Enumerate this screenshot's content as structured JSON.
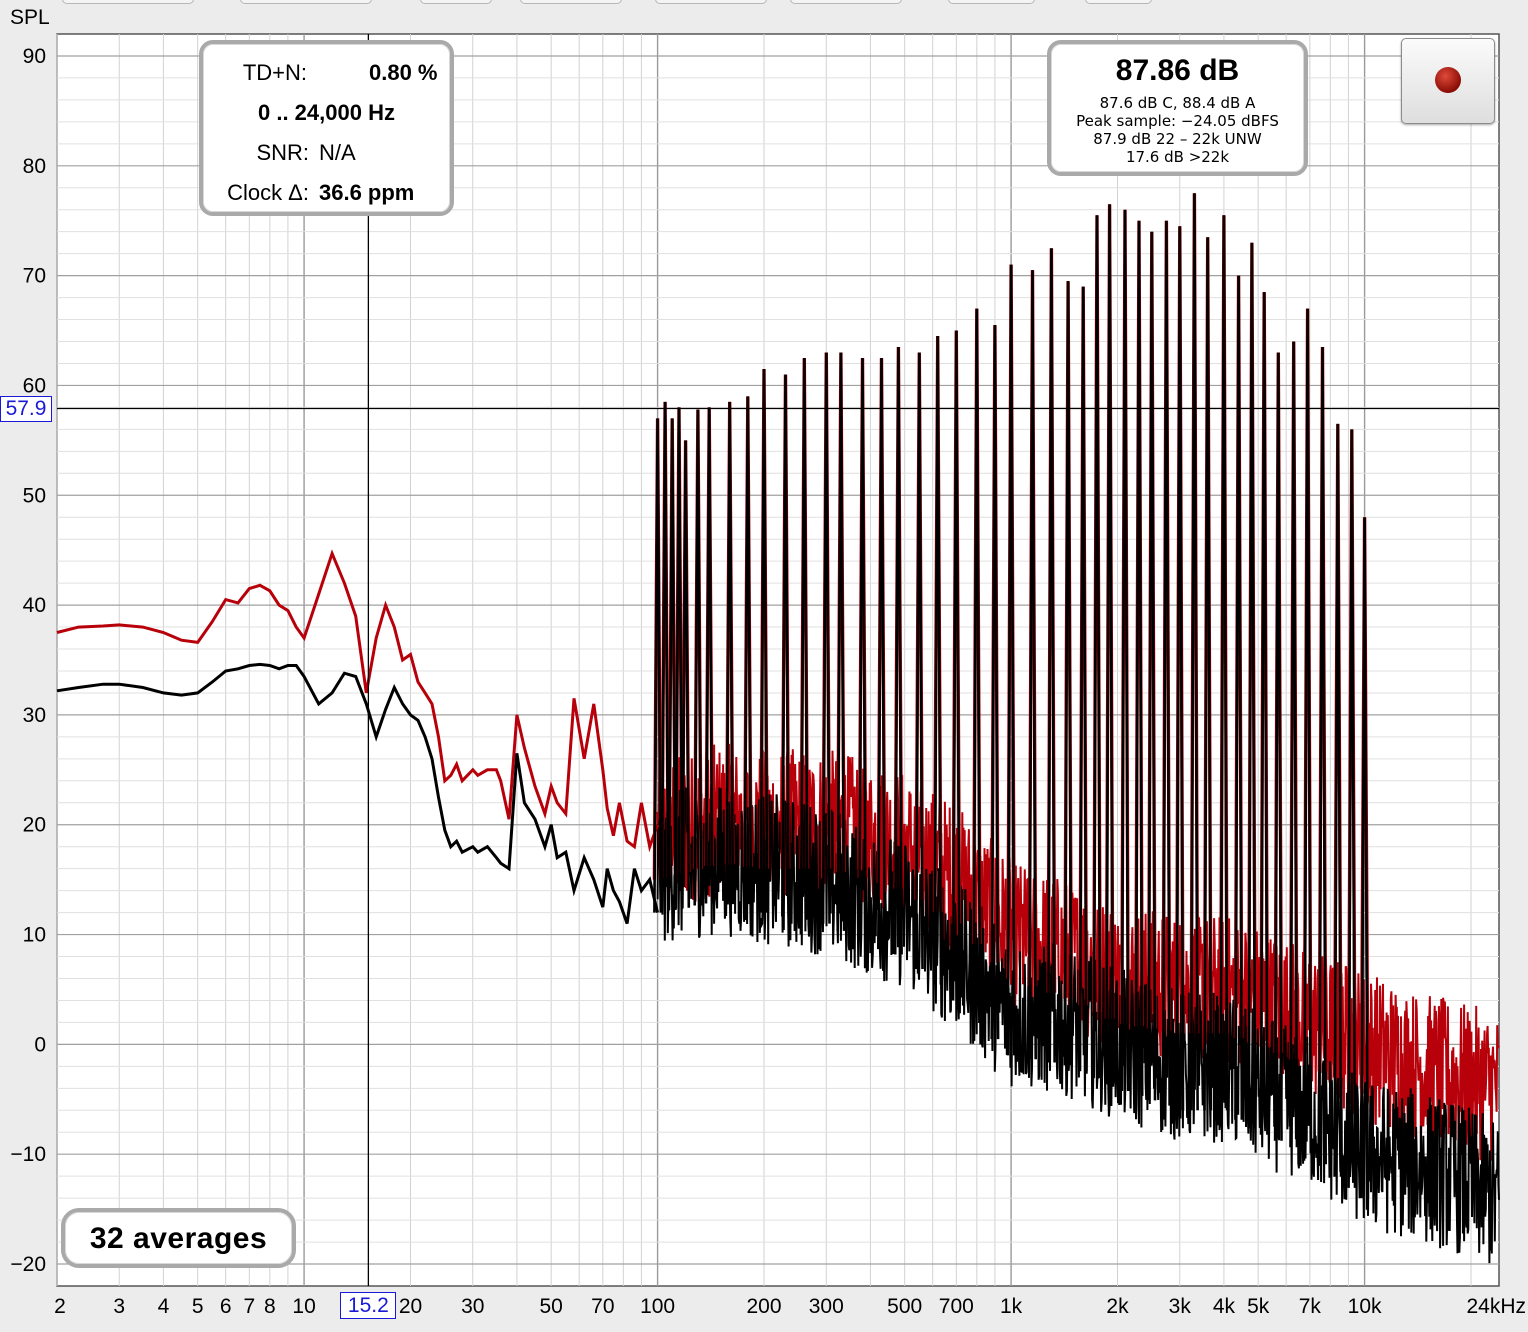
{
  "y_axis_title": "SPL",
  "chart_data": {
    "type": "line",
    "x_scale": "log",
    "xlim_hz": [
      2,
      24000
    ],
    "ylim": [
      -22,
      92
    ],
    "grid": true,
    "x_ticks": [
      {
        "v": 2,
        "label": "2"
      },
      {
        "v": 3,
        "label": "3"
      },
      {
        "v": 4,
        "label": "4"
      },
      {
        "v": 5,
        "label": "5"
      },
      {
        "v": 6,
        "label": "6"
      },
      {
        "v": 7,
        "label": "7"
      },
      {
        "v": 8,
        "label": "8"
      },
      {
        "v": 10,
        "label": "10"
      },
      {
        "v": 20,
        "label": "20"
      },
      {
        "v": 30,
        "label": "30"
      },
      {
        "v": 50,
        "label": "50"
      },
      {
        "v": 70,
        "label": "70"
      },
      {
        "v": 100,
        "label": "100"
      },
      {
        "v": 200,
        "label": "200"
      },
      {
        "v": 300,
        "label": "300"
      },
      {
        "v": 500,
        "label": "500"
      },
      {
        "v": 700,
        "label": "700"
      },
      {
        "v": 1000,
        "label": "1k"
      },
      {
        "v": 2000,
        "label": "2k"
      },
      {
        "v": 3000,
        "label": "3k"
      },
      {
        "v": 4000,
        "label": "4k"
      },
      {
        "v": 5000,
        "label": "5k"
      },
      {
        "v": 7000,
        "label": "7k"
      },
      {
        "v": 10000,
        "label": "10k"
      },
      {
        "v": 24000,
        "label": "24kHz"
      }
    ],
    "y_ticks": [
      90,
      80,
      70,
      60,
      50,
      40,
      30,
      20,
      10,
      0,
      -10,
      -20
    ],
    "cursor": {
      "x_hz": 15.2,
      "y_db": 57.9,
      "x_label": "15.2",
      "y_label": "57.9"
    },
    "series": [
      {
        "color": "#b8000a",
        "x": [
          2,
          2.3,
          2.7,
          3,
          3.5,
          4,
          4.5,
          5,
          5.5,
          6,
          6.5,
          7,
          7.5,
          8,
          8.5,
          9,
          9.5,
          10,
          11,
          12,
          13,
          14,
          15,
          16,
          17,
          18,
          19,
          20,
          21,
          22,
          23,
          24,
          25,
          26,
          27,
          28,
          30,
          31,
          33,
          35,
          36,
          38,
          40,
          42,
          45,
          48,
          50,
          52,
          55,
          58,
          62,
          66,
          70,
          72,
          75,
          78,
          82,
          86,
          90,
          95,
          100
        ],
        "y": [
          37.5,
          38,
          38.1,
          38.2,
          38,
          37.5,
          36.8,
          36.6,
          38.5,
          40.5,
          40.2,
          41.5,
          41.8,
          41.3,
          40,
          39.5,
          38,
          37,
          41,
          44.7,
          42,
          39,
          32,
          37,
          40,
          38,
          35,
          35.5,
          33,
          32,
          31,
          28,
          24,
          24.5,
          25.5,
          24,
          25,
          24.5,
          25,
          25,
          24,
          20.5,
          30,
          27,
          23.5,
          21,
          23.5,
          22,
          21,
          31.5,
          26,
          31,
          25,
          21.5,
          19,
          22,
          18.5,
          18,
          22,
          18,
          20
        ]
      },
      {
        "color": "#000000",
        "x": [
          2,
          2.3,
          2.7,
          3,
          3.5,
          4,
          4.5,
          5,
          5.5,
          6,
          6.5,
          7,
          7.5,
          8,
          8.5,
          9,
          9.5,
          10,
          11,
          12,
          13,
          14,
          15,
          16,
          17,
          18,
          19,
          20,
          21,
          22,
          23,
          24,
          25,
          26,
          27,
          28,
          30,
          31,
          33,
          35,
          36,
          38,
          40,
          42,
          45,
          48,
          50,
          52,
          55,
          58,
          62,
          66,
          70,
          72,
          75,
          78,
          82,
          86,
          90,
          95,
          100
        ],
        "y": [
          32.2,
          32.5,
          32.8,
          32.8,
          32.5,
          32,
          31.8,
          32,
          33,
          34,
          34.2,
          34.5,
          34.6,
          34.5,
          34.2,
          34.5,
          34.5,
          33.5,
          31,
          32,
          33.8,
          33.5,
          31,
          28,
          30.5,
          32.5,
          31,
          30,
          29.5,
          28,
          26,
          22.5,
          19.5,
          18,
          18.5,
          17.5,
          18,
          17.5,
          18,
          17,
          16.5,
          16,
          26.5,
          22,
          20.5,
          18,
          20,
          17,
          17.5,
          14,
          17,
          15,
          12.5,
          16,
          14,
          13,
          11,
          16,
          14,
          15,
          12
        ]
      }
    ],
    "harmonics": {
      "f": [
        100,
        105,
        110,
        115,
        120,
        130,
        140,
        160,
        180,
        200,
        230,
        260,
        300,
        330,
        380,
        430,
        480,
        550,
        620,
        700,
        800,
        900,
        1000,
        1150,
        1300,
        1450,
        1600,
        1750,
        1900,
        2100,
        2300,
        2500,
        2750,
        3000,
        3300,
        3600,
        4000,
        4400,
        4800,
        5200,
        5700,
        6300,
        6900,
        7600,
        8400,
        9200,
        10000
      ],
      "peak": [
        57,
        58.5,
        57,
        58,
        55,
        57.8,
        58,
        58.5,
        59,
        61.5,
        61,
        62.5,
        63,
        63,
        62.5,
        62.5,
        63.5,
        63,
        64.5,
        65,
        67,
        65.5,
        71,
        70.5,
        72.5,
        69.5,
        69,
        75.5,
        76.5,
        76,
        75,
        74,
        75,
        74.5,
        77.5,
        73.5,
        75.5,
        70,
        73,
        68.5,
        63,
        64,
        67,
        63.5,
        56.5,
        56,
        48
      ]
    },
    "noise_floor": {
      "f": [
        100,
        150,
        200,
        300,
        400,
        500,
        700,
        1000,
        1500,
        2000,
        3000,
        4000,
        5000,
        7000,
        10000,
        14000,
        18000,
        24000
      ],
      "red": [
        19,
        20.5,
        20,
        20,
        19,
        18,
        15,
        10,
        8,
        6,
        5,
        5,
        4,
        2,
        0,
        -2,
        -3,
        -4
      ],
      "black": [
        16,
        17,
        16,
        15,
        13,
        12,
        8,
        3,
        2,
        0,
        -2,
        -2,
        -4,
        -6,
        -10,
        -11,
        -12,
        -14
      ]
    }
  },
  "stats_panel": {
    "tdn_label": "TD+N:",
    "tdn_value": "0.80 %",
    "range_value": "0 .. 24,000 Hz",
    "snr_label": "SNR:",
    "snr_value": "N/A",
    "clock_label": "Clock Δ:",
    "clock_value": "36.6 ppm"
  },
  "level_panel": {
    "main": "87.86 dB",
    "line1": "87.6 dB C, 88.4 dB A",
    "line2": "Peak sample: −24.05 dBFS",
    "line3": "87.9 dB 22 – 22k UNW",
    "line4": "17.6 dB >22k"
  },
  "averages": {
    "label": "32 averages"
  }
}
